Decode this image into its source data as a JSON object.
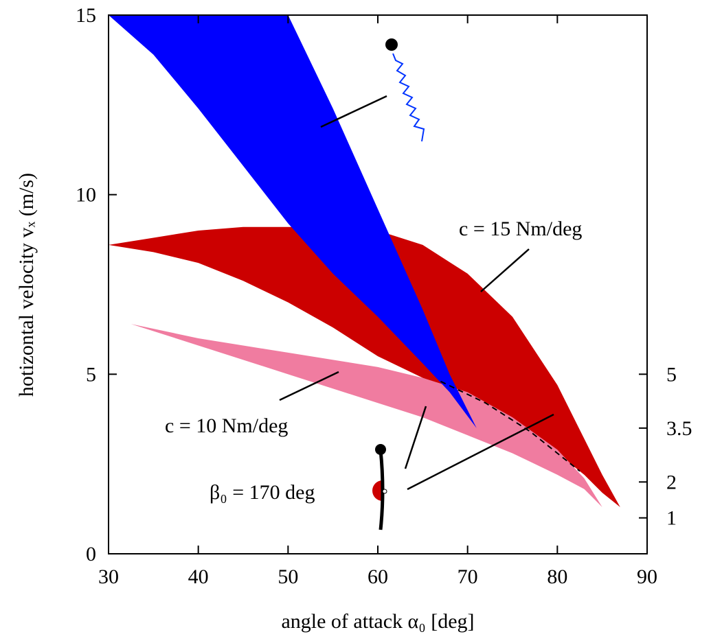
{
  "chart_data": {
    "type": "band",
    "x_label": "angle of attack α₀  [deg]",
    "y_label": "hotizontal velocity  vₓ (m/s)",
    "xlim": [
      30,
      90
    ],
    "xticks": [
      30,
      40,
      50,
      60,
      70,
      80,
      90
    ],
    "ylim": [
      0,
      15
    ],
    "yticks": [
      0,
      5,
      10,
      15
    ],
    "y2lim": [
      0,
      15
    ],
    "y2ticks": [
      1,
      2,
      3.5,
      5
    ],
    "bands": [
      {
        "color": "#cc0000",
        "x": [
          30,
          35,
          40,
          45,
          50,
          55,
          60,
          65,
          70,
          75,
          80,
          83,
          85,
          87
        ],
        "upper": [
          8.6,
          8.8,
          9.0,
          9.1,
          9.1,
          9.1,
          9.0,
          8.6,
          7.8,
          6.6,
          4.7,
          3.2,
          2.2,
          1.3
        ],
        "lower": [
          8.6,
          8.4,
          8.1,
          7.6,
          7.0,
          6.3,
          5.5,
          4.9,
          4.4,
          3.7,
          2.8,
          2.2,
          1.7,
          1.3
        ]
      },
      {
        "color": "#f07ca0",
        "x": [
          32.5,
          40,
          50,
          60,
          65,
          70,
          75,
          80,
          83,
          85
        ],
        "upper": [
          6.4,
          6.0,
          5.6,
          5.2,
          4.9,
          4.5,
          3.8,
          2.9,
          2.1,
          1.3
        ],
        "lower": [
          6.4,
          5.8,
          5.0,
          4.2,
          3.8,
          3.3,
          2.8,
          2.2,
          1.8,
          1.3
        ]
      },
      {
        "color": "#0000ff",
        "x": [
          30,
          35,
          40,
          45,
          50,
          55,
          60,
          65,
          68,
          71
        ],
        "upper": [
          15,
          15,
          15,
          15,
          15,
          12.4,
          9.6,
          6.8,
          5.0,
          3.5
        ],
        "lower": [
          15,
          13.9,
          12.4,
          10.8,
          9.2,
          7.8,
          6.6,
          5.3,
          4.5,
          3.5
        ]
      }
    ],
    "dashed_line": {
      "x": [
        67,
        72,
        77,
        82.5
      ],
      "values": [
        4.8,
        4.2,
        3.4,
        2.3
      ]
    },
    "annotations": [
      "c = 15 Nm/deg",
      "c = 10 Nm/deg",
      "β₀ = 170 deg"
    ]
  }
}
